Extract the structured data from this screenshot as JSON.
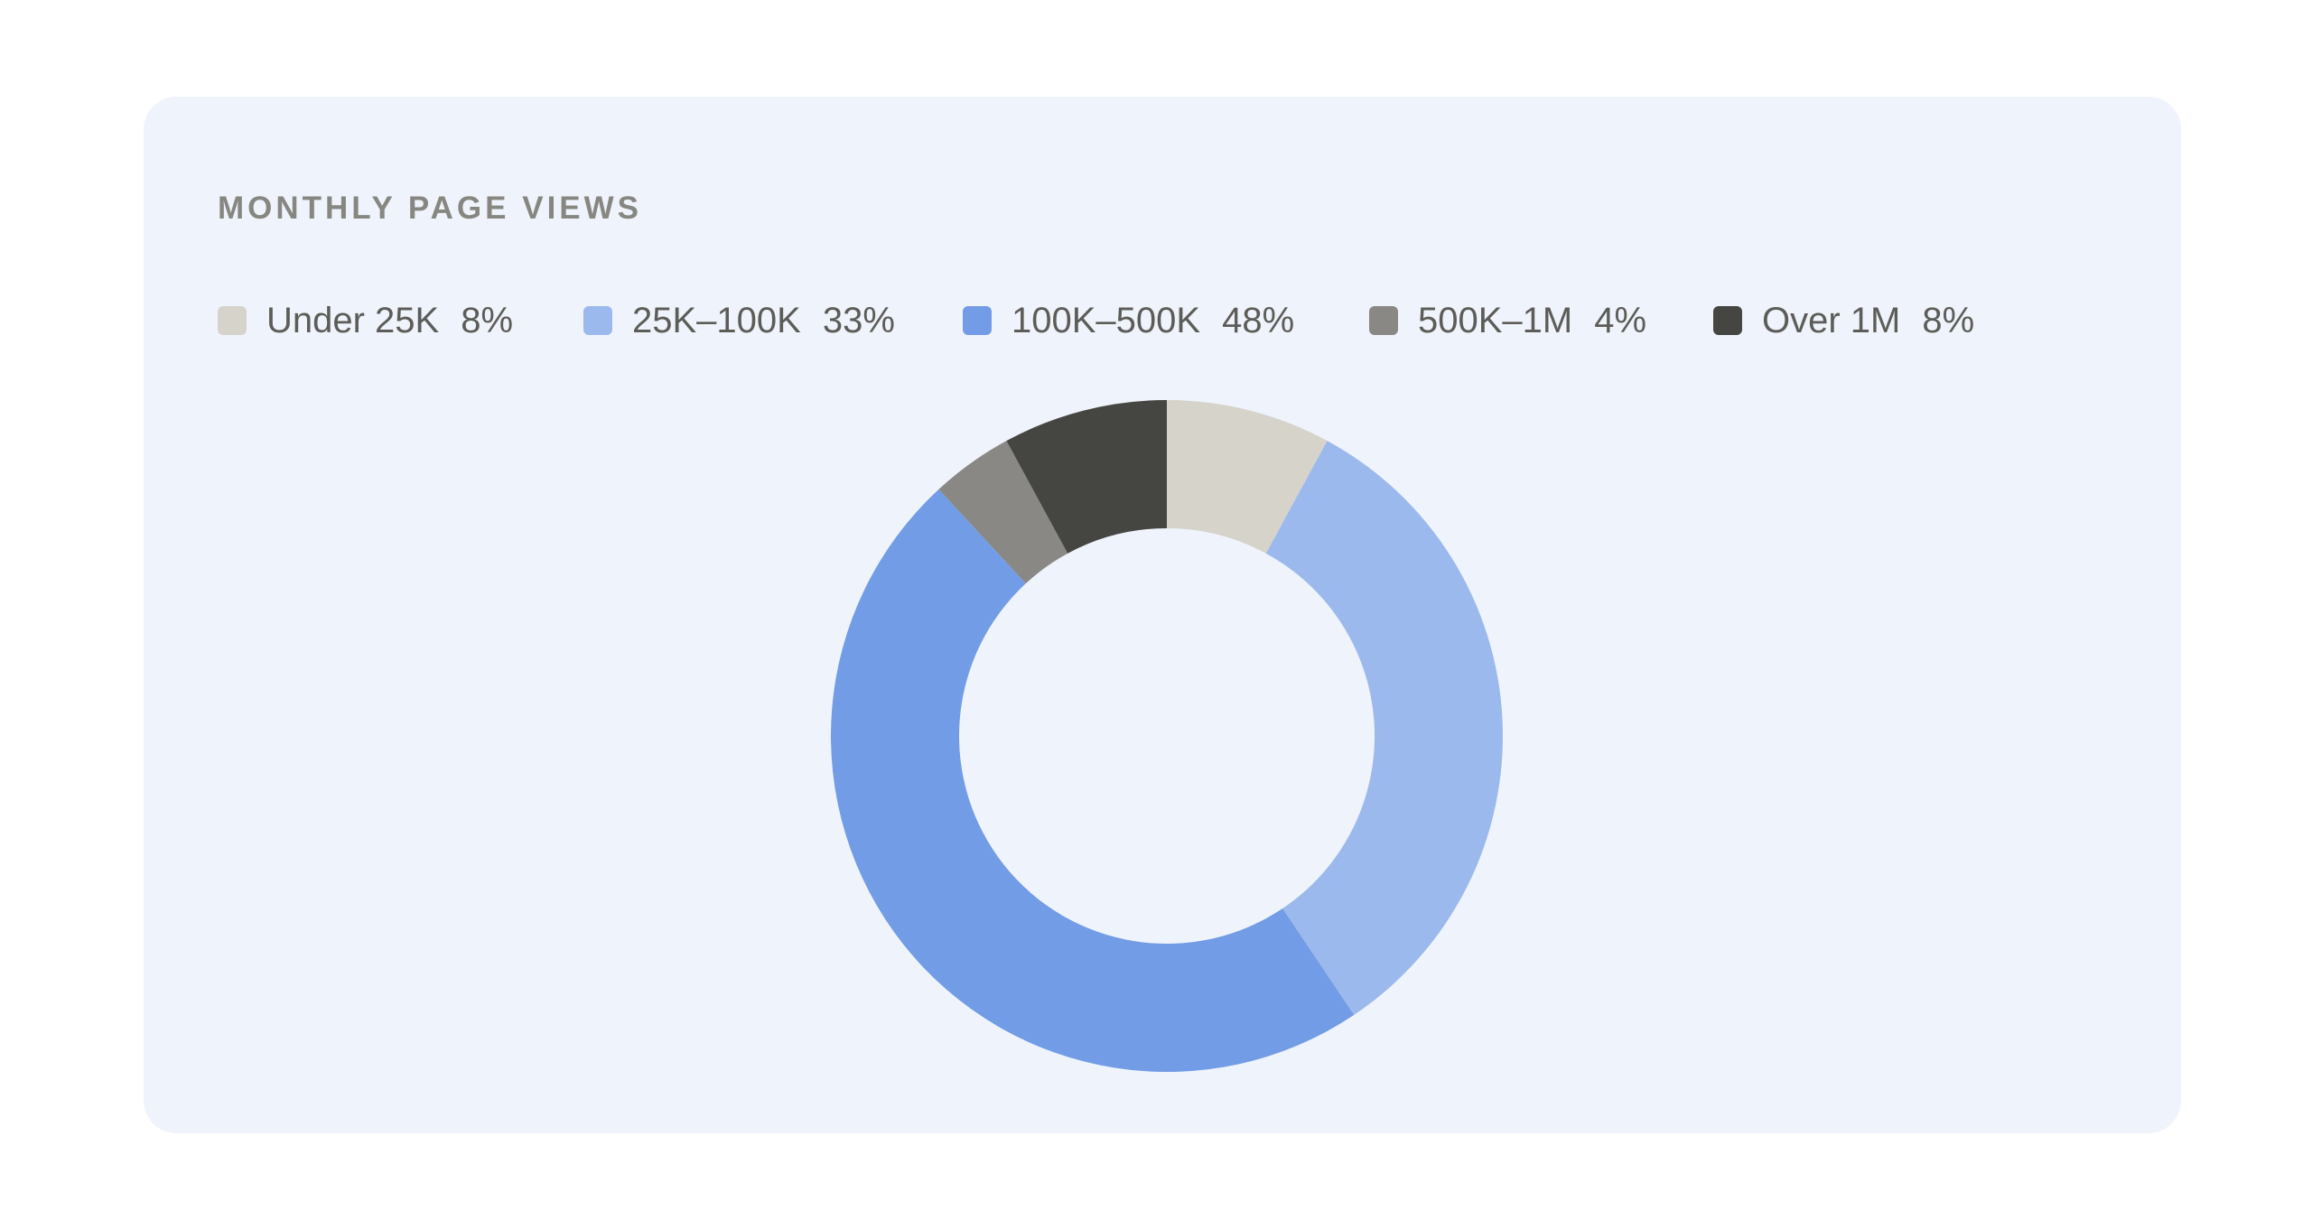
{
  "chart_data": {
    "type": "pie",
    "title": "MONTHLY PAGE VIEWS",
    "style": "donut",
    "categories": [
      "Under 25K",
      "25K–100K",
      "100K–500K",
      "500K–1M",
      "Over 1M"
    ],
    "values": [
      8,
      33,
      48,
      4,
      8
    ],
    "value_labels": [
      "8%",
      "33%",
      "48%",
      "4%",
      "8%"
    ],
    "unit": "%",
    "colors": [
      "#d6d3cb",
      "#9cb9ee",
      "#729ce6",
      "#898884",
      "#454542"
    ],
    "legend_position": "top-left",
    "start_angle": "12 o'clock",
    "direction": "clockwise"
  },
  "colors": {
    "card_background": "#eff4fc",
    "page_background": "#ffffff",
    "title": "#878782",
    "legend_text": "#5c5c58"
  }
}
